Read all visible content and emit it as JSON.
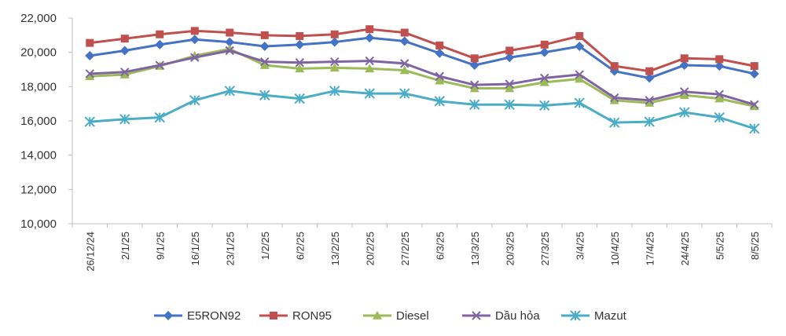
{
  "chart_data": {
    "type": "line",
    "title": "",
    "xlabel": "",
    "ylabel": "",
    "ylim": [
      10000,
      22000
    ],
    "y_ticks": [
      10000,
      12000,
      14000,
      16000,
      18000,
      20000,
      22000
    ],
    "y_tick_labels": [
      "10,000",
      "12,000",
      "14,000",
      "16,000",
      "18,000",
      "20,000",
      "22,000"
    ],
    "grid": false,
    "legend_position": "bottom",
    "categories": [
      "26/12/24",
      "2/1/25",
      "9/1/25",
      "16/1/25",
      "23/1/25",
      "1/2/25",
      "6/2/25",
      "13/2/25",
      "20/2/25",
      "27/2/25",
      "6/3/25",
      "13/3/25",
      "20/3/25",
      "27/3/25",
      "3/4/25",
      "10/4/25",
      "17/4/25",
      "24/4/25",
      "5/5/25",
      "8/5/25"
    ],
    "series": [
      {
        "name": "E5RON92",
        "color": "#4472C4",
        "marker": "diamond",
        "values": [
          19800,
          20100,
          20450,
          20750,
          20600,
          20350,
          20450,
          20600,
          20850,
          20650,
          19950,
          19250,
          19700,
          20000,
          20350,
          18900,
          18500,
          19250,
          19200,
          18750
        ]
      },
      {
        "name": "RON95",
        "color": "#C0504D",
        "marker": "square",
        "values": [
          20550,
          20800,
          21050,
          21250,
          21150,
          21000,
          20950,
          21050,
          21350,
          21150,
          20400,
          19650,
          20100,
          20450,
          20950,
          19200,
          18900,
          19650,
          19600,
          19200
        ]
      },
      {
        "name": "Diesel",
        "color": "#9BBB59",
        "marker": "triangle",
        "values": [
          18600,
          18700,
          19200,
          19800,
          20200,
          19250,
          19050,
          19100,
          19050,
          18950,
          18350,
          17900,
          17900,
          18250,
          18450,
          17200,
          17050,
          17500,
          17300,
          16850
        ]
      },
      {
        "name": "Dầu hỏa",
        "color": "#8064A2",
        "marker": "x",
        "values": [
          18750,
          18850,
          19250,
          19700,
          20100,
          19450,
          19400,
          19450,
          19500,
          19350,
          18600,
          18100,
          18150,
          18500,
          18700,
          17350,
          17200,
          17700,
          17550,
          16950
        ]
      },
      {
        "name": "Mazut",
        "color": "#4BACC6",
        "marker": "star",
        "values": [
          15950,
          16100,
          16200,
          17200,
          17750,
          17500,
          17300,
          17750,
          17600,
          17600,
          17150,
          16950,
          16950,
          16900,
          17050,
          15900,
          15950,
          16500,
          16200,
          15550
        ]
      }
    ]
  }
}
